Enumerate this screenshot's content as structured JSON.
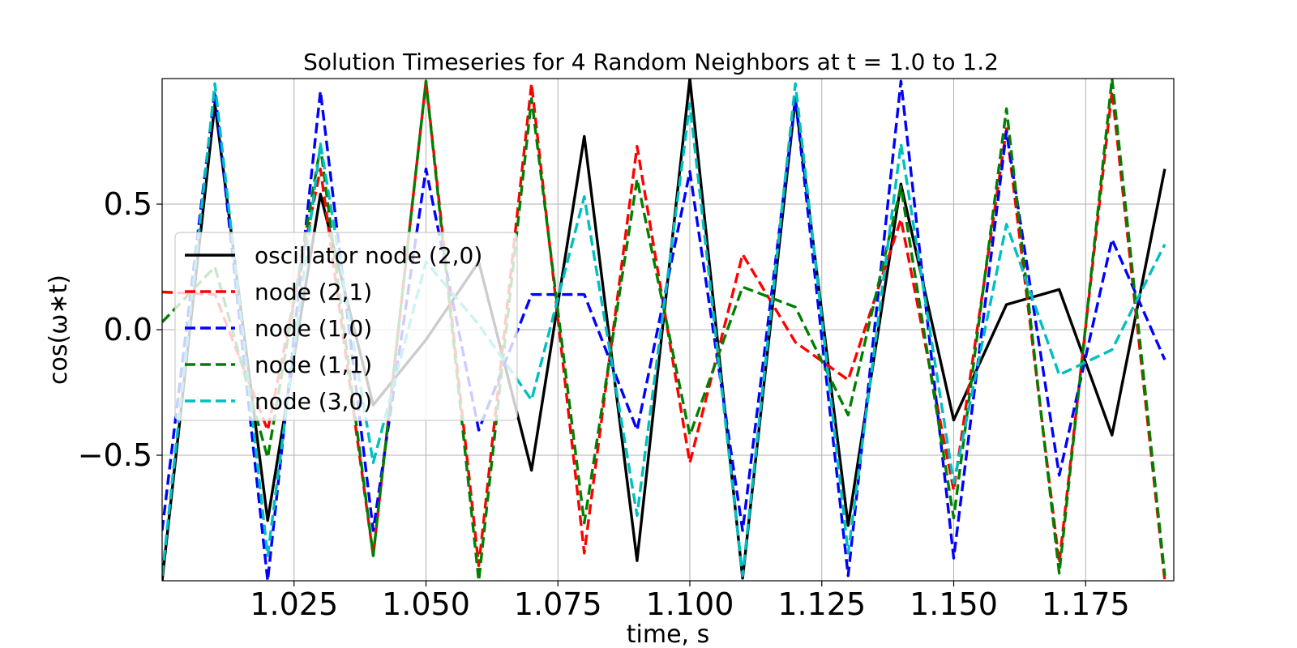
{
  "chart_data": {
    "type": "line",
    "title": "Solution Timeseries for 4 Random Neighbors at t = 1.0 to 1.2",
    "xlabel": "time, s",
    "ylabel": "cos(ω∗t)",
    "xlim": [
      1.0,
      1.1917
    ],
    "ylim": [
      -1.0,
      1.0
    ],
    "grid": true,
    "legend_position": "center-left",
    "x_ticks": [
      1.025,
      1.05,
      1.075,
      1.1,
      1.125,
      1.15,
      1.175
    ],
    "x_tick_labels": [
      "1.025",
      "1.050",
      "1.075",
      "1.100",
      "1.125",
      "1.150",
      "1.175"
    ],
    "y_ticks": [
      -0.5,
      0.0,
      0.5
    ],
    "y_tick_labels": [
      "−0.5",
      "0.0",
      "0.5"
    ],
    "x": [
      1.0,
      1.01,
      1.02,
      1.03,
      1.04,
      1.05,
      1.06,
      1.07,
      1.08,
      1.09,
      1.1,
      1.11,
      1.12,
      1.13,
      1.14,
      1.15,
      1.16,
      1.17,
      1.18,
      1.19
    ],
    "series": [
      {
        "name": "oscillator node (2,0)",
        "color": "#000000",
        "dash": "solid",
        "values": [
          -1.0,
          0.9,
          -0.76,
          0.54,
          -0.3,
          -0.04,
          0.27,
          -0.56,
          0.77,
          -0.92,
          1.0,
          -0.99,
          0.92,
          -0.78,
          0.58,
          -0.36,
          0.1,
          0.16,
          -0.42,
          0.64
        ]
      },
      {
        "name": "node (2,1)",
        "color": "#ff0000",
        "dash": "dashed",
        "values": [
          0.15,
          0.14,
          -0.4,
          0.64,
          -0.9,
          0.99,
          -0.94,
          0.98,
          -0.89,
          0.73,
          -0.53,
          0.3,
          -0.05,
          -0.2,
          0.44,
          -0.64,
          0.8,
          -0.93,
          0.95,
          -1.0
        ]
      },
      {
        "name": "node (1,0)",
        "color": "#0000ff",
        "dash": "dashed",
        "values": [
          -0.8,
          0.95,
          -1.0,
          0.95,
          -0.8,
          0.64,
          -0.4,
          0.14,
          0.14,
          -0.4,
          0.63,
          -0.8,
          0.92,
          -0.98,
          0.99,
          -0.91,
          0.79,
          -0.58,
          0.36,
          -0.12
        ]
      },
      {
        "name": "node (1,1)",
        "color": "#008000",
        "dash": "dashed",
        "values": [
          0.03,
          0.25,
          -0.51,
          0.73,
          -0.9,
          0.99,
          -1.0,
          0.92,
          -0.77,
          0.6,
          -0.42,
          0.17,
          0.09,
          -0.34,
          0.57,
          -0.75,
          0.88,
          -0.97,
          1.0,
          -0.98
        ]
      },
      {
        "name": "node (3,0)",
        "color": "#00bfbf",
        "dash": "dashed",
        "values": [
          -0.98,
          0.98,
          -0.9,
          0.74,
          -0.53,
          0.27,
          0.02,
          -0.28,
          0.53,
          -0.74,
          0.9,
          -0.98,
          0.98,
          -0.89,
          0.74,
          -0.61,
          0.42,
          -0.18,
          -0.08,
          0.34
        ]
      }
    ]
  }
}
